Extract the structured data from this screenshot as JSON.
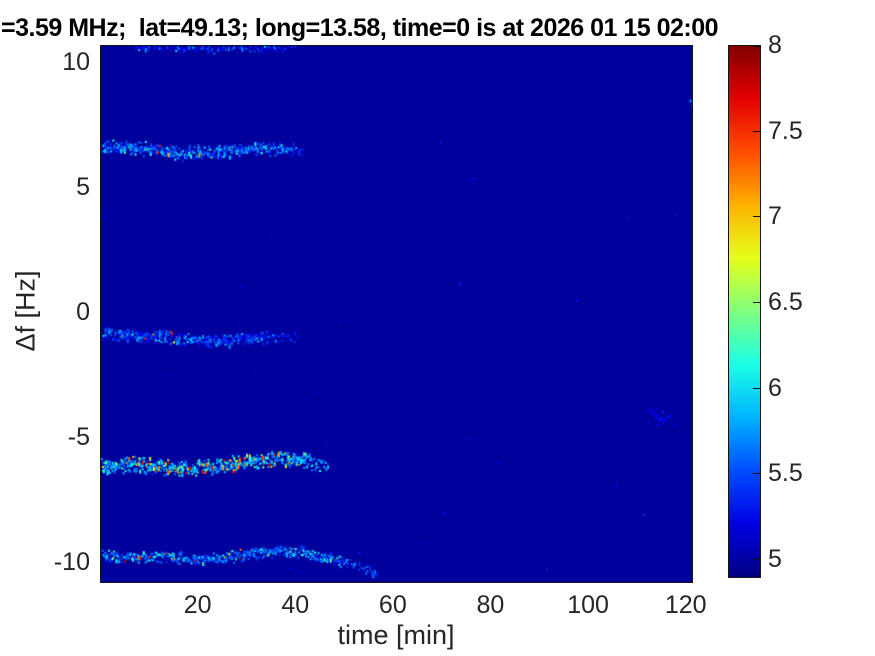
{
  "title": "=3.59 MHz;  lat=49.13; long=13.58, time=0 is at 2026 01 15 02:00",
  "colors": {
    "tick_text": "#262626",
    "title_text": "#000000",
    "axis_frame": "#151515"
  },
  "chart_data": {
    "type": "heatmap",
    "description": "Doppler shift spectrogram (jet colormap) with horizontal speckled echo traces near df = +10.6, +6.5, -1, -6 and -9.8 Hz during the first ~0-57 minutes, then empty background",
    "xlabel": "time [min]",
    "ylabel": "Δf [Hz]",
    "xlim": [
      0,
      121.5
    ],
    "ylim": [
      -10.84,
      10.68
    ],
    "x_ticks": [
      20,
      40,
      60,
      80,
      100,
      120
    ],
    "y_ticks": [
      10,
      5,
      0,
      -5,
      -10
    ],
    "colorbar": {
      "ticks": [
        8,
        7.5,
        7,
        6.5,
        6,
        5.5,
        5
      ],
      "cmin": 4.89,
      "cmax": 8,
      "colormap": "jet"
    },
    "background_value": 4.98,
    "bands": [
      {
        "name": "trace-top-edge-10.6Hz",
        "seed": 11,
        "t0": 7,
        "t1": 43,
        "path": [
          [
            7,
            10.62
          ],
          [
            20,
            10.5
          ],
          [
            30,
            10.55
          ],
          [
            43,
            10.6
          ]
        ],
        "thickness": 0.14,
        "density": 1.1,
        "val_base": 5.2,
        "val_var": 0.9,
        "hot_prob": 0.01,
        "hot_window": [
          7,
          43
        ],
        "fade_from": 0.75
      },
      {
        "name": "trace-+6.5Hz",
        "seed": 21,
        "t0": 0.4,
        "t1": 42,
        "path": [
          [
            0.4,
            6.62
          ],
          [
            8,
            6.55
          ],
          [
            13,
            6.4
          ],
          [
            18,
            6.3
          ],
          [
            24,
            6.4
          ],
          [
            30,
            6.52
          ],
          [
            36,
            6.5
          ],
          [
            42,
            6.42
          ]
        ],
        "thickness": 0.2,
        "density": 2.6,
        "val_base": 5.35,
        "val_var": 1.15,
        "hot_prob": 0.05,
        "hot_window": [
          9,
          22
        ],
        "fade_from": 0.82
      },
      {
        "name": "trace--1Hz",
        "seed": 31,
        "t0": 0.4,
        "t1": 41,
        "path": [
          [
            0.4,
            -0.85
          ],
          [
            7,
            -0.95
          ],
          [
            13,
            -1.0
          ],
          [
            19,
            -1.15
          ],
          [
            25,
            -1.18
          ],
          [
            31,
            -1.05
          ],
          [
            36,
            -1.02
          ],
          [
            41,
            -1.12
          ]
        ],
        "thickness": 0.18,
        "density": 2.3,
        "val_base": 5.3,
        "val_var": 1.0,
        "hot_prob": 0.035,
        "hot_window": [
          4,
          28
        ],
        "fade_from": 0.72
      },
      {
        "name": "trace--6Hz",
        "seed": 41,
        "t0": 0.4,
        "t1": 46.5,
        "path": [
          [
            0.4,
            -6.2
          ],
          [
            6,
            -6.1
          ],
          [
            11,
            -6.2
          ],
          [
            17,
            -6.28
          ],
          [
            23,
            -6.18
          ],
          [
            29,
            -6.05
          ],
          [
            34,
            -5.92
          ],
          [
            38,
            -5.85
          ],
          [
            42,
            -5.95
          ],
          [
            46.5,
            -6.15
          ]
        ],
        "thickness": 0.22,
        "density": 3.0,
        "val_base": 5.6,
        "val_var": 1.3,
        "hot_prob": 0.17,
        "hot_window": [
          5,
          41
        ],
        "fade_from": 0.88
      },
      {
        "name": "trace--9.8Hz",
        "seed": 51,
        "t0": 0.4,
        "t1": 57,
        "path": [
          [
            0.4,
            -9.72
          ],
          [
            7,
            -9.85
          ],
          [
            13,
            -9.78
          ],
          [
            19,
            -9.9
          ],
          [
            25,
            -9.85
          ],
          [
            31,
            -9.68
          ],
          [
            37,
            -9.55
          ],
          [
            41,
            -9.6
          ],
          [
            45,
            -9.78
          ],
          [
            50,
            -10.0
          ],
          [
            54,
            -10.3
          ],
          [
            57,
            -10.45
          ]
        ],
        "thickness": 0.16,
        "density": 2.2,
        "val_base": 5.4,
        "val_var": 1.1,
        "hot_prob": 0.07,
        "hot_window": [
          2,
          30
        ],
        "fade_from": 0.8
      },
      {
        "name": "faint-late-smudge--4.2Hz",
        "seed": 61,
        "t0": 112,
        "t1": 118.5,
        "path": [
          [
            112,
            -4.15
          ],
          [
            118.5,
            -4.35
          ]
        ],
        "thickness": 0.35,
        "density": 0.9,
        "val_base": 5.15,
        "val_var": 0.45,
        "hot_prob": 0,
        "hot_window": [
          112,
          118.5
        ],
        "fade_from": 0.5
      }
    ],
    "noise": {
      "count": 45,
      "val_range": [
        5.0,
        5.45
      ],
      "seed": 99
    },
    "specks": [
      {
        "t": 120.8,
        "df": 8.5,
        "val": 5.7
      },
      {
        "t": 121.2,
        "df": 8.3,
        "val": 5.5
      }
    ]
  }
}
